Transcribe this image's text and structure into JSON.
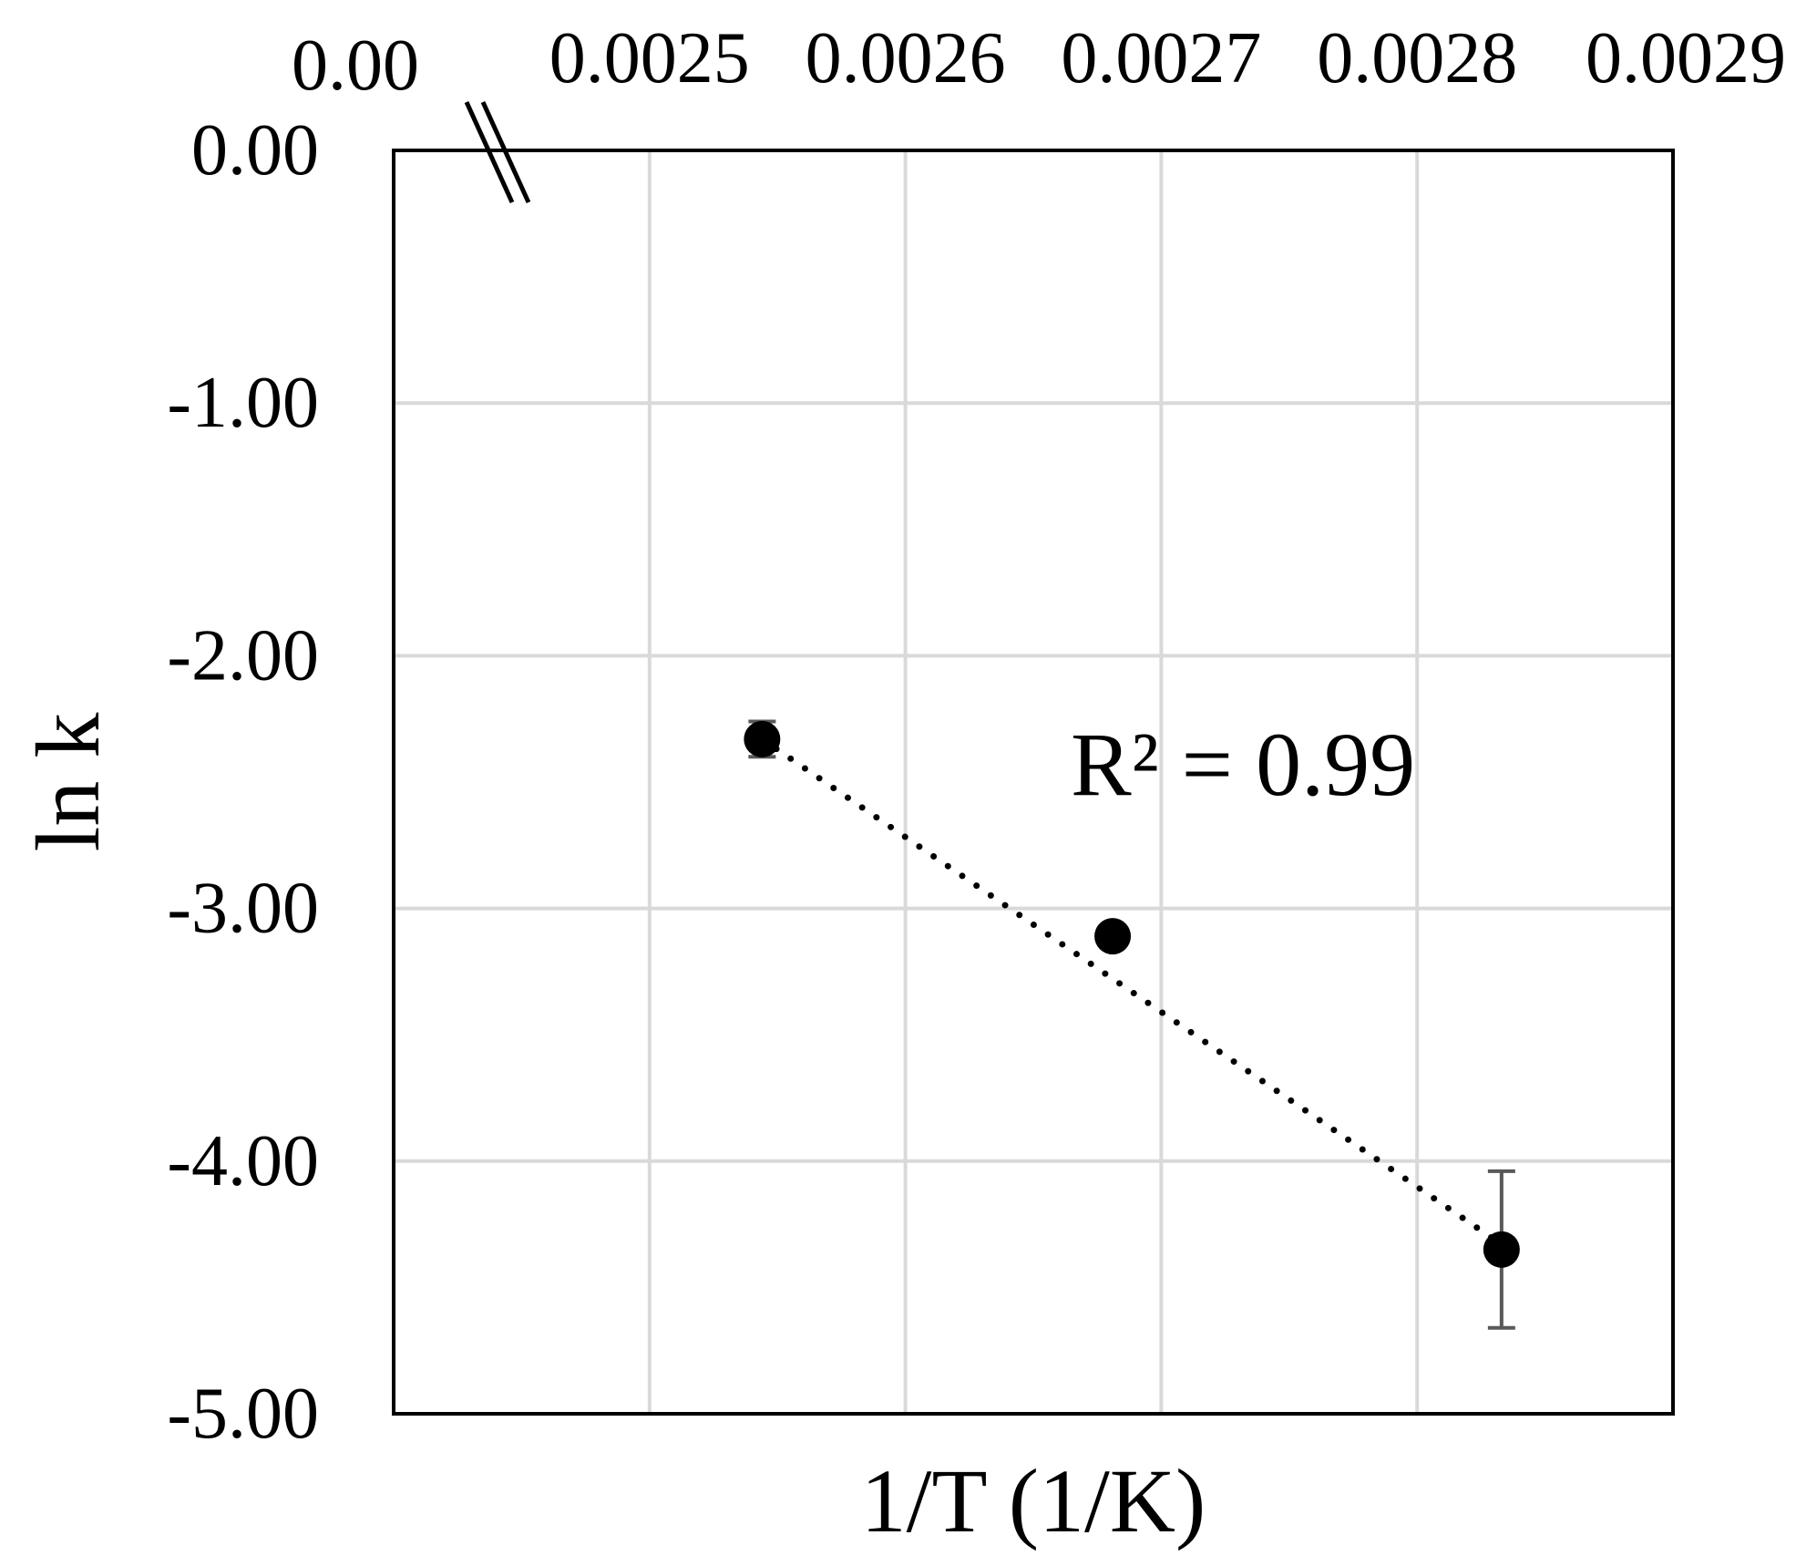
{
  "chart_data": {
    "type": "scatter",
    "xlabel": "1/T (1/K)",
    "ylabel": "ln k",
    "x_axis_position": "top",
    "x_axis_break": true,
    "x_break_label": "0.00",
    "xlim": [
      0.0024,
      0.0029
    ],
    "ylim": [
      -5.0,
      0.0
    ],
    "x_ticks": [
      0.0025,
      0.0026,
      0.0027,
      0.0028,
      0.0029
    ],
    "x_tick_labels": [
      "0.0025",
      "0.0026",
      "0.0027",
      "0.0028",
      "0.0029"
    ],
    "y_ticks": [
      0.0,
      -1.0,
      -2.0,
      -3.0,
      -4.0,
      -5.0
    ],
    "y_tick_labels": [
      "0.00",
      "-1.00",
      "-2.00",
      "-3.00",
      "-4.00",
      "-5.00"
    ],
    "grid": true,
    "series": [
      {
        "points": [
          {
            "x": 0.002544,
            "y": -2.33,
            "err": 0.07
          },
          {
            "x": 0.002681,
            "y": -3.11,
            "err": 0.04
          },
          {
            "x": 0.002833,
            "y": -4.35,
            "err": 0.31
          }
        ],
        "trendline": {
          "style": "dotted",
          "from": [
            0.002544,
            -2.33
          ],
          "to": [
            0.002833,
            -4.33
          ]
        }
      }
    ],
    "annotations": [
      {
        "text": "R² = 0.99"
      }
    ]
  },
  "colors": {
    "marker": "#000000",
    "trendline": "#000000",
    "error_bar": "#595959",
    "grid": "#d9d9d9",
    "frame": "#000000"
  }
}
